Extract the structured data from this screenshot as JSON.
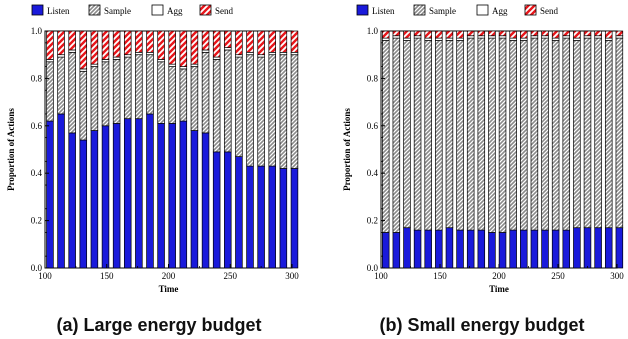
{
  "legend": [
    {
      "key": "listen",
      "label": "Listen"
    },
    {
      "key": "sample",
      "label": "Sample"
    },
    {
      "key": "agg",
      "label": "Agg"
    },
    {
      "key": "send",
      "label": "Send"
    }
  ],
  "colors": {
    "listen": "#1a1adb",
    "sample": "#a8a8a8",
    "agg": "#ffffff",
    "send": "#e8161b"
  },
  "chart_data": [
    {
      "type": "bar",
      "stacked": true,
      "caption": "(a) Large energy budget",
      "xlabel": "Time",
      "ylabel": "Proportion of Actions",
      "xlim": [
        100,
        300
      ],
      "ylim": [
        0,
        1
      ],
      "xticks": [
        100,
        150,
        200,
        250,
        300
      ],
      "yticks": [
        0.0,
        0.2,
        0.4,
        0.6,
        0.8,
        1.0
      ],
      "x": [
        104,
        113,
        122,
        131,
        140,
        149,
        158,
        167,
        176,
        185,
        194,
        203,
        212,
        221,
        230,
        239,
        248,
        257,
        266,
        275,
        284,
        293,
        302
      ],
      "series": [
        {
          "name": "Listen",
          "key": "listen",
          "values": [
            0.62,
            0.65,
            0.57,
            0.54,
            0.58,
            0.6,
            0.61,
            0.63,
            0.63,
            0.65,
            0.61,
            0.61,
            0.62,
            0.58,
            0.57,
            0.49,
            0.49,
            0.47,
            0.43,
            0.43,
            0.43,
            0.42,
            0.42
          ]
        },
        {
          "name": "Sample",
          "key": "sample",
          "values": [
            0.25,
            0.24,
            0.34,
            0.29,
            0.27,
            0.27,
            0.27,
            0.26,
            0.27,
            0.25,
            0.26,
            0.24,
            0.22,
            0.27,
            0.34,
            0.39,
            0.43,
            0.42,
            0.47,
            0.46,
            0.47,
            0.48,
            0.48
          ]
        },
        {
          "name": "Agg",
          "key": "agg",
          "values": [
            0.01,
            0.01,
            0.01,
            0.01,
            0.01,
            0.01,
            0.01,
            0.01,
            0.01,
            0.01,
            0.01,
            0.01,
            0.01,
            0.01,
            0.01,
            0.01,
            0.01,
            0.01,
            0.01,
            0.01,
            0.01,
            0.01,
            0.01
          ]
        },
        {
          "name": "Send",
          "key": "send",
          "values": [
            0.12,
            0.1,
            0.08,
            0.16,
            0.14,
            0.12,
            0.11,
            0.1,
            0.09,
            0.09,
            0.12,
            0.14,
            0.15,
            0.14,
            0.08,
            0.11,
            0.07,
            0.1,
            0.09,
            0.1,
            0.09,
            0.09,
            0.09
          ]
        }
      ]
    },
    {
      "type": "bar",
      "stacked": true,
      "caption": "(b) Small energy budget",
      "xlabel": "Time",
      "ylabel": "Proportion of Actions",
      "xlim": [
        100,
        300
      ],
      "ylim": [
        0,
        1
      ],
      "xticks": [
        100,
        150,
        200,
        250,
        300
      ],
      "yticks": [
        0.0,
        0.2,
        0.4,
        0.6,
        0.8,
        1.0
      ],
      "x": [
        104,
        113,
        122,
        131,
        140,
        149,
        158,
        167,
        176,
        185,
        194,
        203,
        212,
        221,
        230,
        239,
        248,
        257,
        266,
        275,
        284,
        293,
        302
      ],
      "series": [
        {
          "name": "Listen",
          "key": "listen",
          "values": [
            0.15,
            0.15,
            0.17,
            0.16,
            0.16,
            0.16,
            0.17,
            0.16,
            0.16,
            0.16,
            0.15,
            0.15,
            0.16,
            0.16,
            0.16,
            0.16,
            0.16,
            0.16,
            0.17,
            0.17,
            0.17,
            0.17,
            0.17
          ]
        },
        {
          "name": "Sample",
          "key": "sample",
          "values": [
            0.81,
            0.82,
            0.79,
            0.81,
            0.8,
            0.8,
            0.79,
            0.8,
            0.81,
            0.81,
            0.82,
            0.82,
            0.8,
            0.8,
            0.81,
            0.81,
            0.8,
            0.81,
            0.79,
            0.8,
            0.8,
            0.79,
            0.8
          ]
        },
        {
          "name": "Agg",
          "key": "agg",
          "values": [
            0.01,
            0.01,
            0.01,
            0.01,
            0.01,
            0.01,
            0.01,
            0.01,
            0.01,
            0.01,
            0.01,
            0.01,
            0.01,
            0.01,
            0.01,
            0.01,
            0.01,
            0.01,
            0.01,
            0.01,
            0.01,
            0.01,
            0.01
          ]
        },
        {
          "name": "Send",
          "key": "send",
          "values": [
            0.03,
            0.02,
            0.03,
            0.02,
            0.03,
            0.03,
            0.03,
            0.03,
            0.02,
            0.02,
            0.02,
            0.02,
            0.03,
            0.03,
            0.02,
            0.02,
            0.03,
            0.02,
            0.03,
            0.02,
            0.02,
            0.03,
            0.02
          ]
        }
      ]
    }
  ]
}
